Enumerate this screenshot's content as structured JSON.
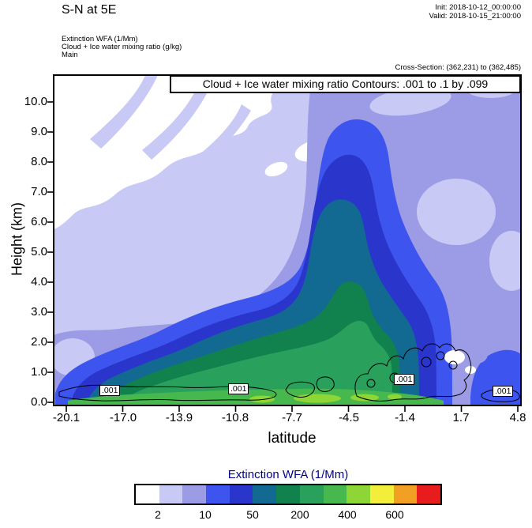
{
  "header": {
    "title": "S-N at 5E",
    "init": "Init: 2018-10-12_00:00:00",
    "valid": "Valid: 2018-10-15_21:00:00",
    "fields": [
      "Extinction WFA  (1/Mm)",
      "Cloud + Ice water mixing ratio   (g/kg)",
      "Main"
    ],
    "cross_section": "Cross-Section: (362,231) to (362,485)"
  },
  "plot": {
    "annotation": "Cloud + Ice water mixing ratio Contours: .001 to .1 by .099",
    "ylabel": "Height (km)",
    "xlabel": "latitude",
    "yticks": [
      "10.0",
      "9.0",
      "8.0",
      "7.0",
      "6.0",
      "5.0",
      "4.0",
      "3.0",
      "2.0",
      "1.0",
      "0.0"
    ],
    "xticks": [
      "-20.1",
      "-17.0",
      "-13.9",
      "-10.8",
      "-7.7",
      "-4.5",
      "-1.4",
      "1.7",
      "4.8"
    ],
    "contour_label": ".001"
  },
  "colorbar": {
    "title": "Extinction WFA  (1/Mm)",
    "tick_labels": [
      "2",
      "10",
      "50",
      "200",
      "400",
      "600"
    ],
    "colors": [
      "#ffffff",
      "#c9c9f5",
      "#9b9be6",
      "#3d55ee",
      "#2a35cc",
      "#126a92",
      "#11814e",
      "#29a05c",
      "#46b84e",
      "#8ed636",
      "#f2ee3a",
      "#f2a024",
      "#e81c1c"
    ]
  },
  "colors": {
    "colorbar_title": "#00008b",
    "text": "#000000",
    "contour_line": "#000000"
  },
  "chart_data": {
    "type": "heatmap",
    "subtype": "filled-contour vertical cross-section",
    "title": "S-N at 5E",
    "xlabel": "latitude",
    "ylabel": "Height (km)",
    "x_ticks": [
      -20.1,
      -17.0,
      -13.9,
      -10.8,
      -7.7,
      -4.5,
      -1.4,
      1.7,
      4.8
    ],
    "y_ticks": [
      0,
      1,
      2,
      3,
      4,
      5,
      6,
      7,
      8,
      9,
      10
    ],
    "xlim": [
      -20.1,
      4.8
    ],
    "ylim": [
      0,
      10.9
    ],
    "init_time": "2018-10-12_00:00:00",
    "valid_time": "2018-10-15_21:00:00",
    "cross_section_points": "(362,231) to (362,485)",
    "shaded_field": {
      "name": "Extinction WFA (1/Mm)",
      "n_color_bins": 13,
      "colorbar_tick_labels": [
        2,
        10,
        50,
        200,
        400,
        600
      ],
      "colors": [
        "#ffffff",
        "#c9c9f5",
        "#9b9be6",
        "#3d55ee",
        "#2a35cc",
        "#126a92",
        "#11814e",
        "#29a05c",
        "#46b84e",
        "#8ed636",
        "#f2ee3a",
        "#f2a024",
        "#e81c1c"
      ]
    },
    "line_contour_field": {
      "name": "Cloud + Ice water mixing ratio (g/kg)",
      "contour_spec": ".001 to .1 by .099",
      "levels": [
        0.001,
        0.1
      ],
      "visible_labels": [
        ".001",
        ".001",
        ".001",
        ".001"
      ]
    },
    "notes": "White/low extinction aloft upper-left; lavender background; periwinkle mass on right; deep blue-to-green maximum below ~3 km with a vertical plume near latitude -1.4 reaching ~9 km; strongest (green/yellow-green) values in lowest 1 km between latitudes -17 and 0."
  }
}
